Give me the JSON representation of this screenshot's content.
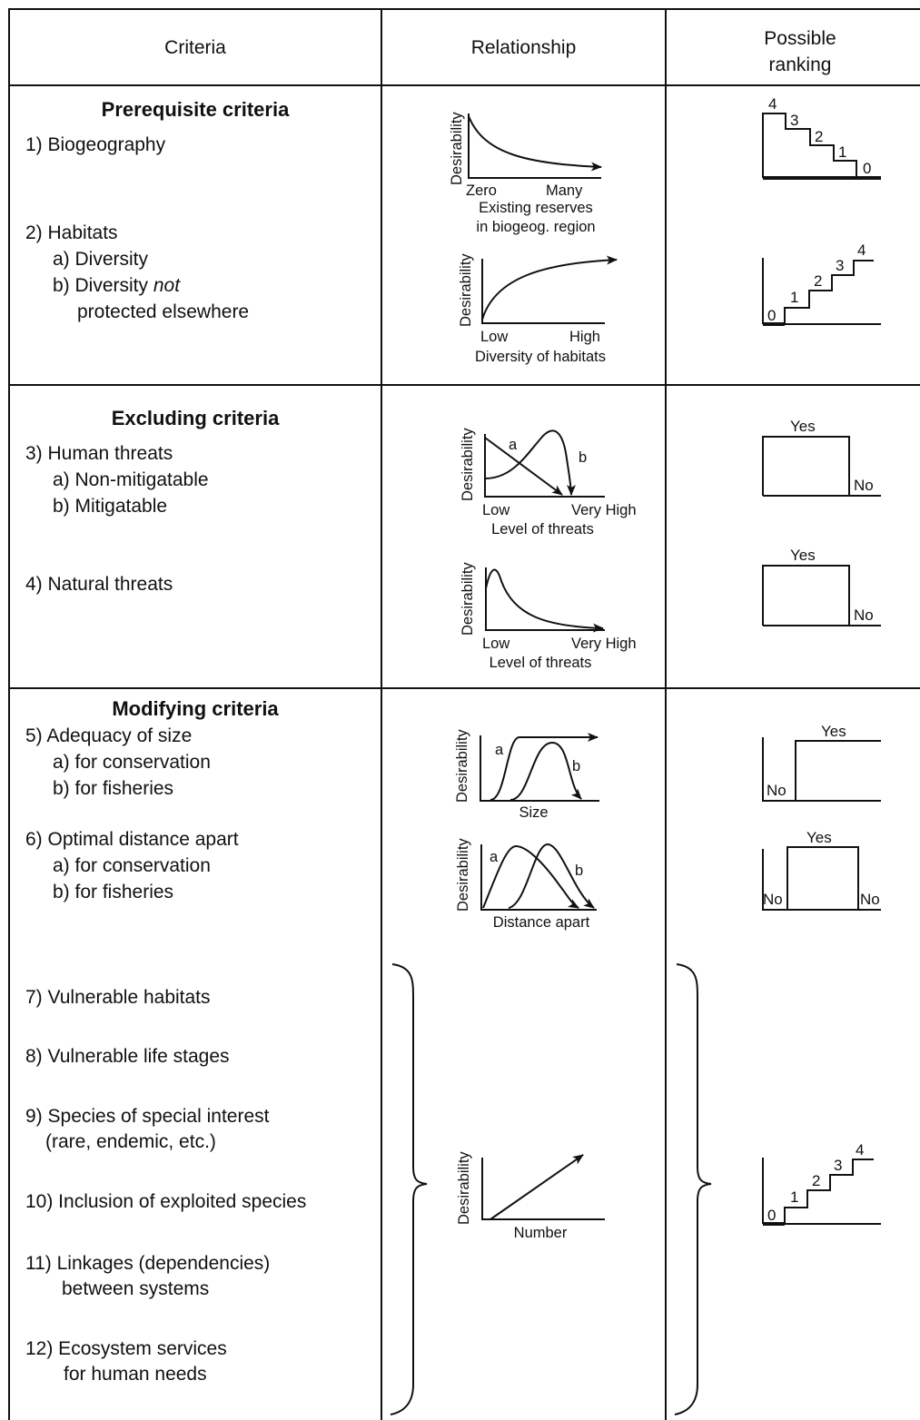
{
  "header": {
    "criteria": "Criteria",
    "relationship": "Relationship",
    "ranking_line1": "Possible",
    "ranking_line2": "ranking"
  },
  "sections": {
    "prerequisite": "Prerequisite criteria",
    "excluding": "Excluding criteria",
    "modifying": "Modifying criteria"
  },
  "criteria": {
    "c1": "1) Biogeography",
    "c2": "2) Habitats",
    "c2a": "a) Diversity",
    "c2b_pre": "b) Diversity",
    "c2b_em": "not",
    "c2b_cont": "protected elsewhere",
    "c3": "3) Human threats",
    "c3a": "a) Non-mitigatable",
    "c3b": "b) Mitigatable",
    "c4": "4) Natural threats",
    "c5": "5) Adequacy of size",
    "c5a": "a) for conservation",
    "c5b": "b) for fisheries",
    "c6": "6) Optimal distance apart",
    "c6a": "a) for conservation",
    "c6b": "b) for fisheries",
    "c7": "7) Vulnerable habitats",
    "c8": "8) Vulnerable life stages",
    "c9": "9) Species of special interest",
    "c9b": "(rare, endemic, etc.)",
    "c10": "10) Inclusion of exploited species",
    "c11": "11) Linkages (dependencies)",
    "c11b": "between systems",
    "c12": "12) Ecosystem services",
    "c12b": "for human needs"
  },
  "graphs": {
    "ylabel": "Desirability",
    "g1": {
      "x_low": "Zero",
      "x_high": "Many",
      "caption1": "Existing reserves",
      "caption2": "in biogeog. region"
    },
    "g2": {
      "x_low": "Low",
      "x_high": "High",
      "caption": "Diversity of habitats"
    },
    "g3": {
      "curve_a": "a",
      "curve_b": "b",
      "x_low": "Low",
      "x_high": "Very High",
      "caption": "Level of threats"
    },
    "g4": {
      "x_low": "Low",
      "x_high": "Very High",
      "caption": "Level of threats"
    },
    "g5": {
      "curve_a": "a",
      "curve_b": "b",
      "caption": "Size"
    },
    "g6": {
      "curve_a": "a",
      "curve_b": "b",
      "caption": "Distance apart"
    },
    "g7": {
      "caption": "Number"
    }
  },
  "rankings": {
    "steps_desc": [
      "4",
      "3",
      "2",
      "1",
      "0"
    ],
    "steps_asc": [
      "0",
      "1",
      "2",
      "3",
      "4"
    ],
    "yes": "Yes",
    "no": "No"
  }
}
